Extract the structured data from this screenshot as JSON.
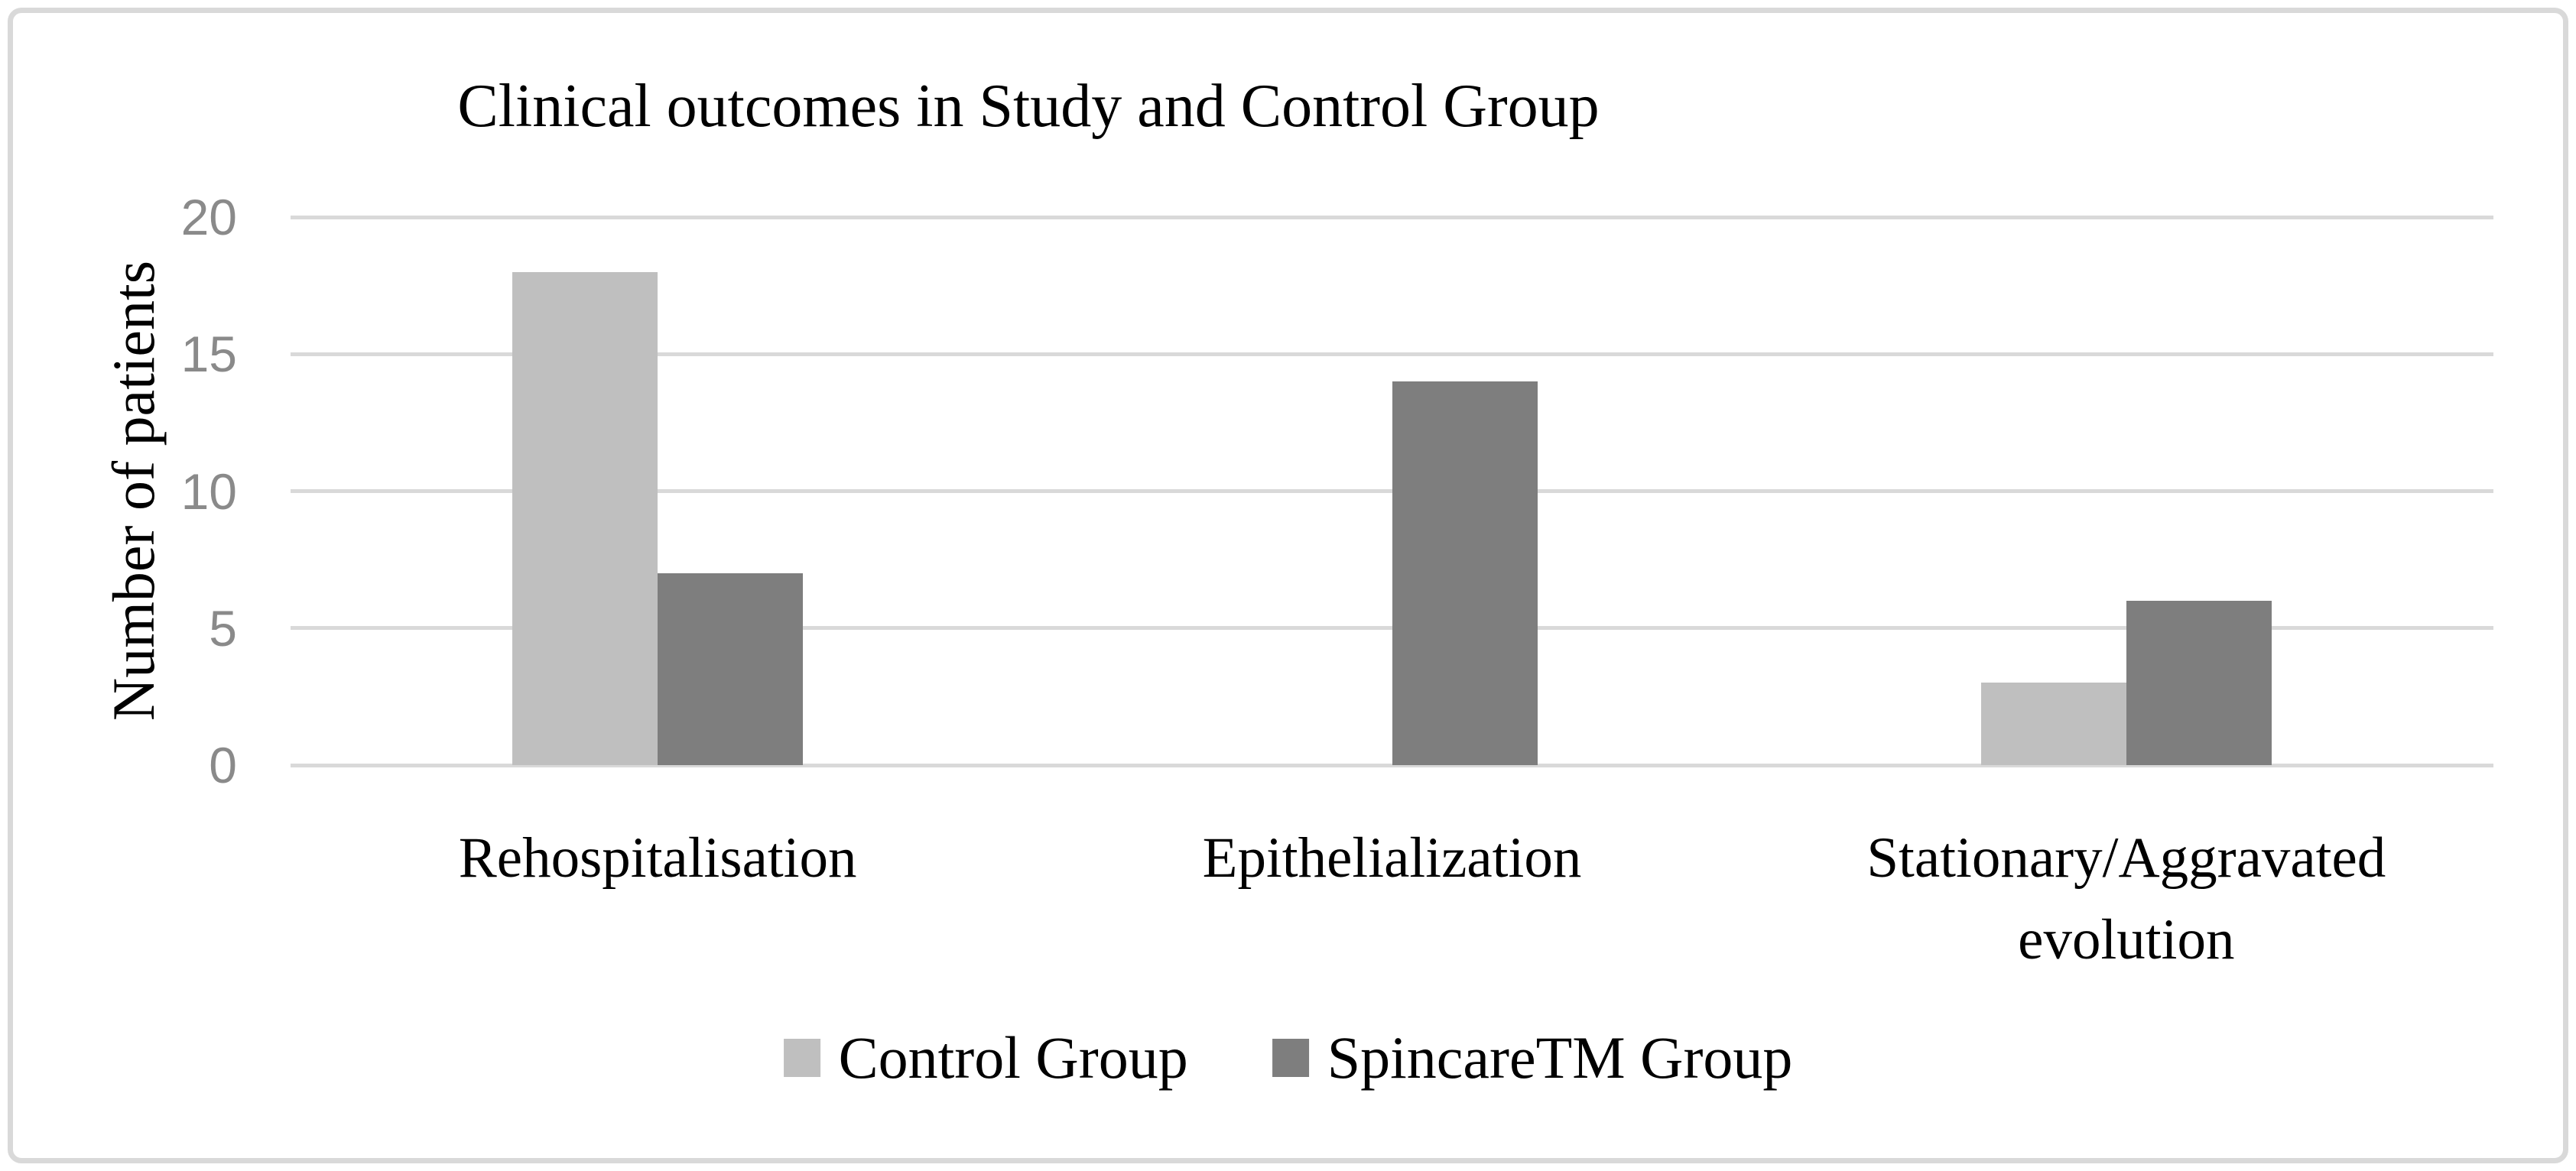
{
  "figure": {
    "background_color": "#ffffff",
    "border_color": "#d9d9d9"
  },
  "chart_data": {
    "type": "bar",
    "title": "Clinical outcomes in Study and Control Group",
    "xlabel": "",
    "ylabel": "Number of patients",
    "categories": [
      "Rehospitalisation",
      "Epithelialization",
      "Stationary/Aggravated evolution"
    ],
    "series": [
      {
        "name": "Control Group",
        "color": "#bfbfbf",
        "values": [
          18,
          0,
          3
        ]
      },
      {
        "name": "SpincareTM Group",
        "color": "#7e7e7e",
        "values": [
          7,
          14,
          6
        ]
      }
    ],
    "y_ticks": [
      20,
      15,
      10,
      5,
      0
    ],
    "ylim": [
      0,
      20
    ],
    "grid": "horizontal",
    "gridline_color": "#d9d9d9",
    "tick_label_color": "#8a8a8a",
    "legend_position": "bottom"
  }
}
